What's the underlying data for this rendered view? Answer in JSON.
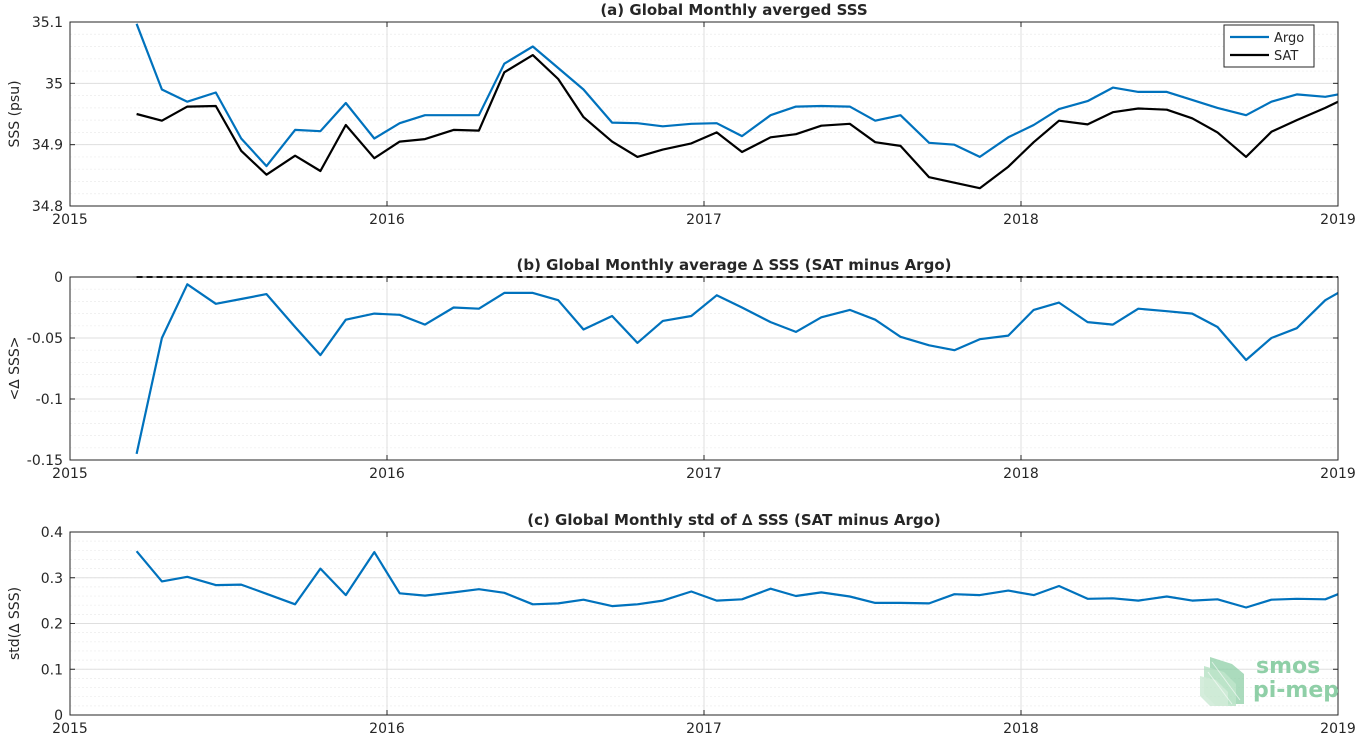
{
  "colors": {
    "argo": "#0072BD",
    "sat": "#000000",
    "grid": "#dfdfdf",
    "axis": "#262626"
  },
  "watermark": {
    "line1": "smos",
    "line2": "pi-mep",
    "color": "#8fcfa7",
    "icon": "smos-logo-icon"
  },
  "chart_data": [
    {
      "type": "line",
      "title": "(a) Global Monthly averged SSS",
      "ylabel": "SSS (psu)",
      "xlabel": "",
      "xlim": [
        2015,
        2019
      ],
      "ylim": [
        34.8,
        35.1
      ],
      "xticks": [
        2015,
        2016,
        2017,
        2018,
        2019
      ],
      "xtick_labels": [
        "2015",
        "2016",
        "2017",
        "2018",
        "2019"
      ],
      "yticks": [
        34.8,
        34.9,
        35,
        35.1
      ],
      "ytick_labels": [
        "34.8",
        "34.9",
        "35",
        "35.1"
      ],
      "grid": true,
      "legend": "top-right",
      "x": [
        2015.21,
        2015.29,
        2015.37,
        2015.46,
        2015.54,
        2015.62,
        2015.71,
        2015.79,
        2015.87,
        2015.96,
        2016.04,
        2016.12,
        2016.21,
        2016.29,
        2016.37,
        2016.46,
        2016.54,
        2016.62,
        2016.71,
        2016.79,
        2016.87,
        2016.96,
        2017.04,
        2017.12,
        2017.21,
        2017.29,
        2017.37,
        2017.46,
        2017.54,
        2017.62,
        2017.71,
        2017.79,
        2017.87,
        2017.96,
        2018.04,
        2018.12,
        2018.21,
        2018.29,
        2018.37,
        2018.46,
        2018.54,
        2018.62,
        2018.71,
        2018.79,
        2018.87,
        2018.96,
        2019.0
      ],
      "series": [
        {
          "name": "Argo",
          "color": "#0072BD",
          "values": [
            35.097,
            34.99,
            34.97,
            34.985,
            34.91,
            34.865,
            34.924,
            34.922,
            34.968,
            34.91,
            34.935,
            34.948,
            34.948,
            34.948,
            35.032,
            35.06,
            35.025,
            34.99,
            34.936,
            34.935,
            34.93,
            34.934,
            34.935,
            34.914,
            34.948,
            34.962,
            34.963,
            34.962,
            34.939,
            34.948,
            34.903,
            34.9,
            34.88,
            34.912,
            34.932,
            34.958,
            34.971,
            34.993,
            34.986,
            34.986,
            34.973,
            34.96,
            34.948,
            34.97,
            34.982,
            34.978,
            34.982
          ]
        },
        {
          "name": "SAT",
          "color": "#000000",
          "values": [
            34.95,
            34.939,
            34.962,
            34.963,
            34.89,
            34.851,
            34.882,
            34.857,
            34.932,
            34.878,
            34.905,
            34.909,
            34.924,
            34.923,
            35.018,
            35.046,
            35.007,
            34.945,
            34.905,
            34.88,
            34.892,
            34.902,
            34.92,
            34.888,
            34.912,
            34.917,
            34.931,
            34.934,
            34.904,
            34.898,
            34.847,
            34.838,
            34.829,
            34.864,
            34.904,
            34.939,
            34.933,
            34.953,
            34.959,
            34.957,
            34.943,
            34.92,
            34.88,
            34.921,
            34.94,
            34.96,
            34.97
          ]
        }
      ]
    },
    {
      "type": "line",
      "title": "(b) Global Monthly average ∆ SSS (SAT minus Argo)",
      "ylabel": "<∆ SSS>",
      "xlabel": "",
      "xlim": [
        2015,
        2019
      ],
      "ylim": [
        -0.15,
        0
      ],
      "xticks": [
        2015,
        2016,
        2017,
        2018,
        2019
      ],
      "xtick_labels": [
        "2015",
        "2016",
        "2017",
        "2018",
        "2019"
      ],
      "yticks": [
        -0.15,
        -0.1,
        -0.05,
        0
      ],
      "ytick_labels": [
        "-0.15",
        "-0.1",
        "-0.05",
        "0"
      ],
      "grid": true,
      "reference_line": {
        "y": 0,
        "style": "dashed"
      },
      "x": [
        2015.21,
        2015.29,
        2015.37,
        2015.46,
        2015.54,
        2015.62,
        2015.71,
        2015.79,
        2015.87,
        2015.96,
        2016.04,
        2016.12,
        2016.21,
        2016.29,
        2016.37,
        2016.46,
        2016.54,
        2016.62,
        2016.71,
        2016.79,
        2016.87,
        2016.96,
        2017.04,
        2017.12,
        2017.21,
        2017.29,
        2017.37,
        2017.46,
        2017.54,
        2017.62,
        2017.71,
        2017.79,
        2017.87,
        2017.96,
        2018.04,
        2018.12,
        2018.21,
        2018.29,
        2018.37,
        2018.46,
        2018.54,
        2018.62,
        2018.71,
        2018.79,
        2018.87,
        2018.96,
        2019.0
      ],
      "series": [
        {
          "name": "",
          "color": "#0072BD",
          "values": [
            -0.145,
            -0.05,
            -0.006,
            -0.022,
            -0.018,
            -0.014,
            -0.041,
            -0.064,
            -0.035,
            -0.03,
            -0.031,
            -0.039,
            -0.025,
            -0.026,
            -0.013,
            -0.013,
            -0.019,
            -0.043,
            -0.032,
            -0.054,
            -0.036,
            -0.032,
            -0.015,
            -0.025,
            -0.037,
            -0.045,
            -0.033,
            -0.027,
            -0.035,
            -0.049,
            -0.056,
            -0.06,
            -0.051,
            -0.048,
            -0.027,
            -0.021,
            -0.037,
            -0.039,
            -0.026,
            -0.028,
            -0.03,
            -0.041,
            -0.068,
            -0.05,
            -0.042,
            -0.019,
            -0.013
          ]
        }
      ]
    },
    {
      "type": "line",
      "title": "(c) Global Monthly std of ∆ SSS (SAT minus Argo)",
      "ylabel": "std(∆ SSS)",
      "xlabel": "",
      "xlim": [
        2015,
        2019
      ],
      "ylim": [
        0,
        0.4
      ],
      "xticks": [
        2015,
        2016,
        2017,
        2018,
        2019
      ],
      "xtick_labels": [
        "2015",
        "2016",
        "2017",
        "2018",
        "2019"
      ],
      "yticks": [
        0,
        0.1,
        0.2,
        0.3,
        0.4
      ],
      "ytick_labels": [
        "0",
        "0.1",
        "0.2",
        "0.3",
        "0.4"
      ],
      "grid": true,
      "x": [
        2015.21,
        2015.29,
        2015.37,
        2015.46,
        2015.54,
        2015.62,
        2015.71,
        2015.79,
        2015.87,
        2015.96,
        2016.04,
        2016.12,
        2016.21,
        2016.29,
        2016.37,
        2016.46,
        2016.54,
        2016.62,
        2016.71,
        2016.79,
        2016.87,
        2016.96,
        2017.04,
        2017.12,
        2017.21,
        2017.29,
        2017.37,
        2017.46,
        2017.54,
        2017.62,
        2017.71,
        2017.79,
        2017.87,
        2017.96,
        2018.04,
        2018.12,
        2018.21,
        2018.29,
        2018.37,
        2018.46,
        2018.54,
        2018.62,
        2018.71,
        2018.79,
        2018.87,
        2018.96,
        2019.0
      ],
      "series": [
        {
          "name": "",
          "color": "#0072BD",
          "values": [
            0.358,
            0.292,
            0.302,
            0.284,
            0.285,
            0.265,
            0.242,
            0.32,
            0.262,
            0.356,
            0.266,
            0.261,
            0.268,
            0.275,
            0.267,
            0.242,
            0.244,
            0.252,
            0.238,
            0.242,
            0.25,
            0.27,
            0.25,
            0.253,
            0.276,
            0.26,
            0.268,
            0.259,
            0.245,
            0.245,
            0.244,
            0.264,
            0.262,
            0.272,
            0.262,
            0.282,
            0.254,
            0.255,
            0.25,
            0.259,
            0.25,
            0.253,
            0.235,
            0.252,
            0.254,
            0.253,
            0.264
          ]
        }
      ]
    }
  ]
}
